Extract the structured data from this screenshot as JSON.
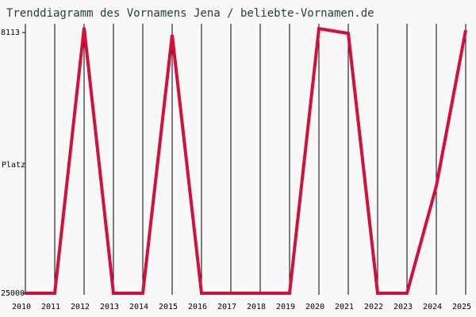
{
  "chart_data": {
    "type": "line",
    "title": "Trenddiagramm des Vornamens Jena / beliebte-Vornamen.de",
    "y_label": "Platz",
    "categories": [
      "2010",
      "2011",
      "2012",
      "2013",
      "2014",
      "2015",
      "2016",
      "2017",
      "2018",
      "2019",
      "2020",
      "2021",
      "2022",
      "2023",
      "2024",
      "2025"
    ],
    "series": [
      {
        "name": "Jena",
        "color": "#d3103a",
        "values": [
          25000,
          25000,
          7800,
          25000,
          25000,
          8270,
          25000,
          25000,
          25000,
          25000,
          7860,
          8170,
          25000,
          25000,
          18050,
          7960
        ]
      }
    ],
    "ylim": [
      25000,
      7700
    ],
    "yticks": [
      25000,
      8113
    ],
    "grid": true
  }
}
